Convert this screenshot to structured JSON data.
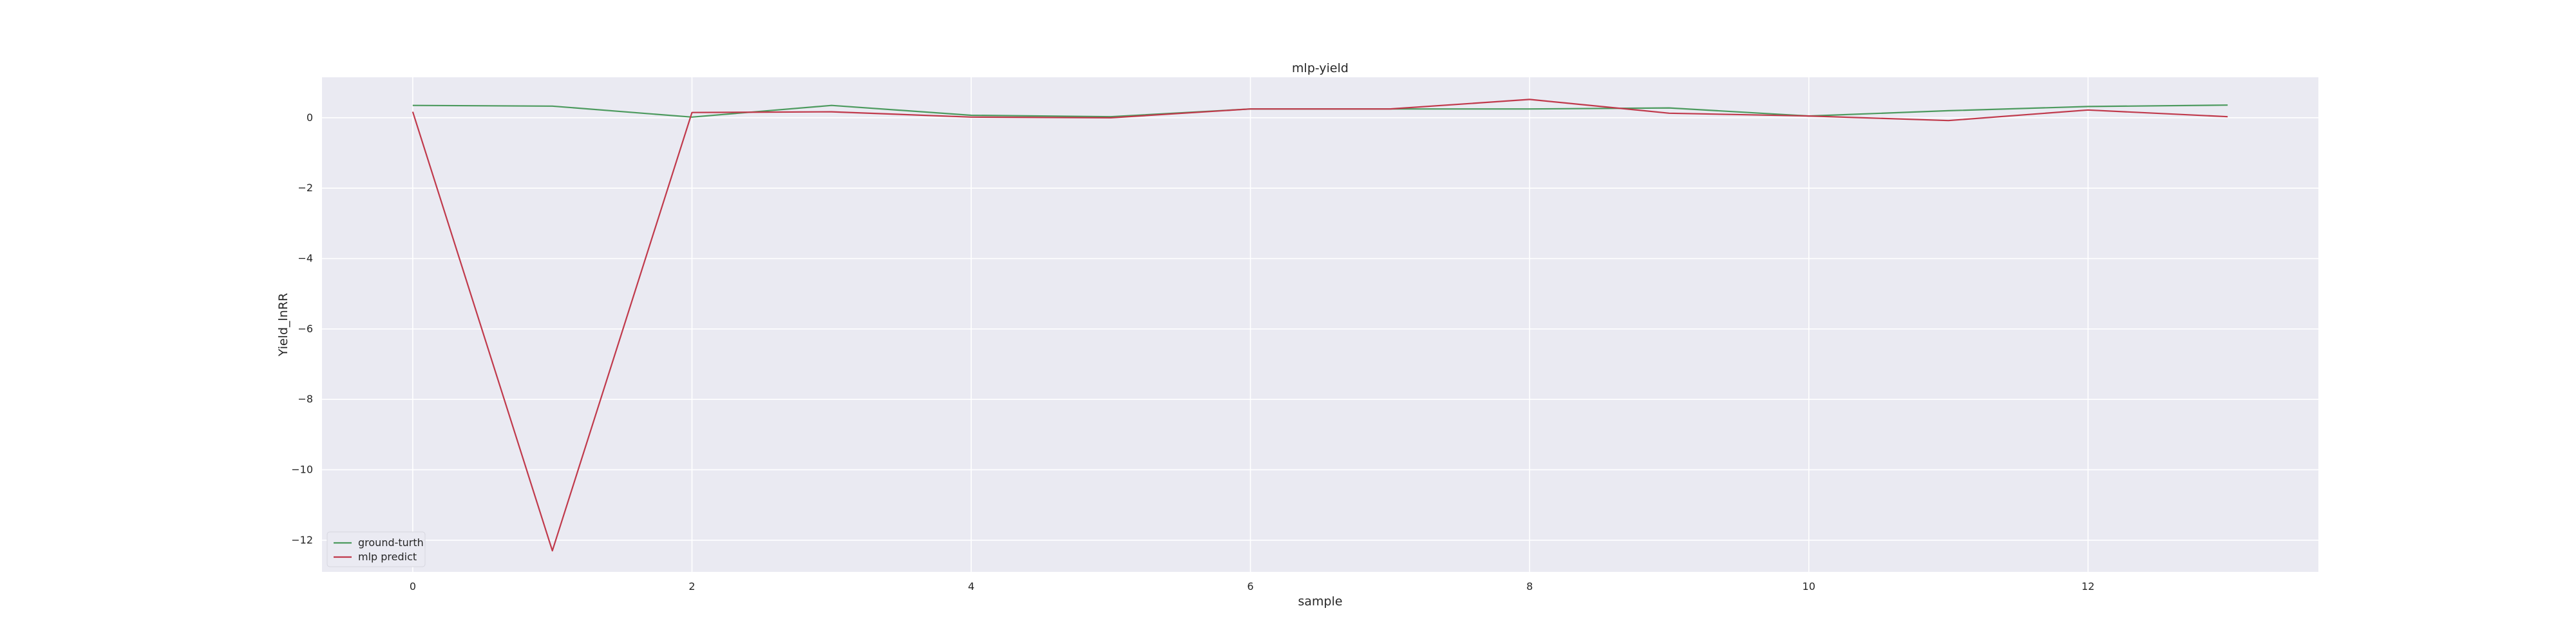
{
  "chart_data": {
    "type": "line",
    "title": "mlp-yield",
    "xlabel": "sample",
    "ylabel": "Yield_lnRR",
    "x": [
      0,
      1,
      2,
      3,
      4,
      5,
      6,
      7,
      8,
      9,
      10,
      11,
      12,
      13
    ],
    "xlim": [
      -0.65,
      13.65
    ],
    "ylim": [
      -12.9,
      1.15
    ],
    "xticks": [
      0,
      2,
      4,
      6,
      8,
      10,
      12
    ],
    "yticks": [
      0,
      -2,
      -4,
      -6,
      -8,
      -10,
      -12
    ],
    "xtick_labels": [
      "0",
      "2",
      "4",
      "6",
      "8",
      "10",
      "12"
    ],
    "ytick_labels": [
      "0",
      "−2",
      "−4",
      "−6",
      "−8",
      "−10",
      "−12"
    ],
    "grid": true,
    "legend_position": "lower-left",
    "series": [
      {
        "name": "ground-turth",
        "color": "#4c9a5e",
        "values": [
          0.35,
          0.33,
          0.02,
          0.35,
          0.07,
          0.03,
          0.25,
          0.25,
          0.25,
          0.28,
          0.05,
          0.2,
          0.32,
          0.36
        ]
      },
      {
        "name": "mlp predict",
        "color": "#c0394b",
        "values": [
          0.17,
          -12.3,
          0.15,
          0.17,
          0.02,
          0.0,
          0.25,
          0.25,
          0.52,
          0.13,
          0.05,
          -0.08,
          0.22,
          0.03
        ]
      }
    ],
    "colors": {
      "plot_background": "#eaeaf2",
      "grid": "#ffffff"
    }
  }
}
